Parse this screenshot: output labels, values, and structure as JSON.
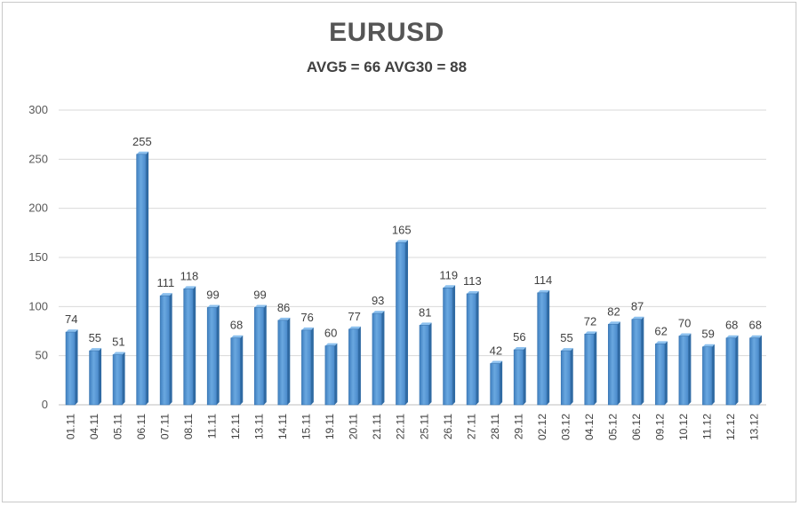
{
  "chart_data": {
    "type": "bar",
    "title": "EURUSD",
    "subtitle": "AVG5 = 66 AVG30 = 88",
    "categories": [
      "01.11",
      "04.11",
      "05.11",
      "06.11",
      "07.11",
      "08.11",
      "11.11",
      "12.11",
      "13.11",
      "14.11",
      "15.11",
      "19.11",
      "20.11",
      "21.11",
      "22.11",
      "25.11",
      "26.11",
      "27.11",
      "28.11",
      "29.11",
      "02.12",
      "03.12",
      "04.12",
      "05.12",
      "06.12",
      "09.12",
      "10.12",
      "11.12",
      "12.12",
      "13.12"
    ],
    "values": [
      74,
      55,
      51,
      255,
      111,
      118,
      99,
      68,
      99,
      86,
      76,
      60,
      77,
      93,
      165,
      81,
      119,
      113,
      42,
      56,
      114,
      55,
      72,
      82,
      87,
      62,
      70,
      59,
      68,
      68
    ],
    "ylim": [
      0,
      300
    ],
    "yticks": [
      0,
      50,
      100,
      150,
      200,
      250,
      300
    ],
    "xlabel": "",
    "ylabel": "",
    "grid": true,
    "bar_color": "#5b9bd5"
  }
}
